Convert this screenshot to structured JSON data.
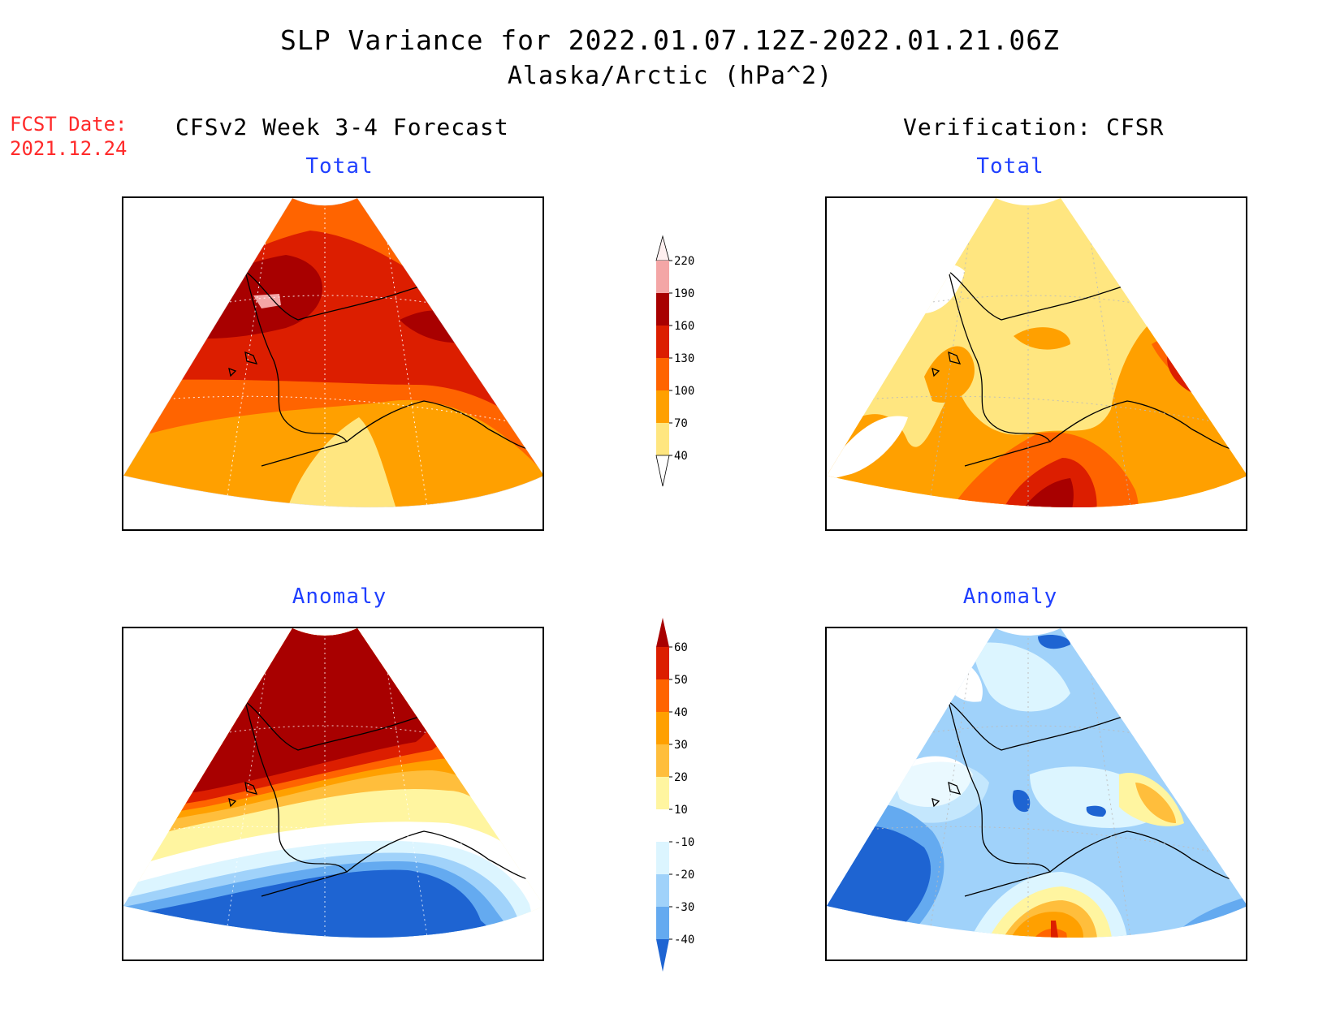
{
  "header": {
    "title": "SLP Variance for 2022.01.07.12Z-2022.01.21.06Z",
    "subtitle": "Alaska/Arctic (hPa^2)",
    "fcst_date_label": "FCST Date:",
    "fcst_date_value": "2021.12.24",
    "left_column_title": "CFSv2 Week 3-4 Forecast",
    "right_column_title": "Verification: CFSR"
  },
  "panels": {
    "forecast_total_title": "Total",
    "verification_total_title": "Total",
    "forecast_anomaly_title": "Anomaly",
    "verification_anomaly_title": "Anomaly"
  },
  "colorbars": {
    "total": {
      "levels": [
        "220",
        "190",
        "160",
        "130",
        "100",
        "70",
        "40"
      ],
      "colors": [
        "#fff0f0",
        "#f4a6a6",
        "#a80000",
        "#dc1e00",
        "#ff6400",
        "#ffa000",
        "#ffe680"
      ]
    },
    "anomaly": {
      "levels": [
        "60",
        "50",
        "40",
        "30",
        "20",
        "10",
        "-10",
        "-20",
        "-30",
        "-40"
      ],
      "colors": [
        "#a80000",
        "#dc1e00",
        "#ff6400",
        "#ffa000",
        "#ffbe3c",
        "#fff5a0",
        "#ffffff",
        "#dcf5ff",
        "#a0d2fa",
        "#64aaf0",
        "#1e64d2"
      ]
    }
  }
}
